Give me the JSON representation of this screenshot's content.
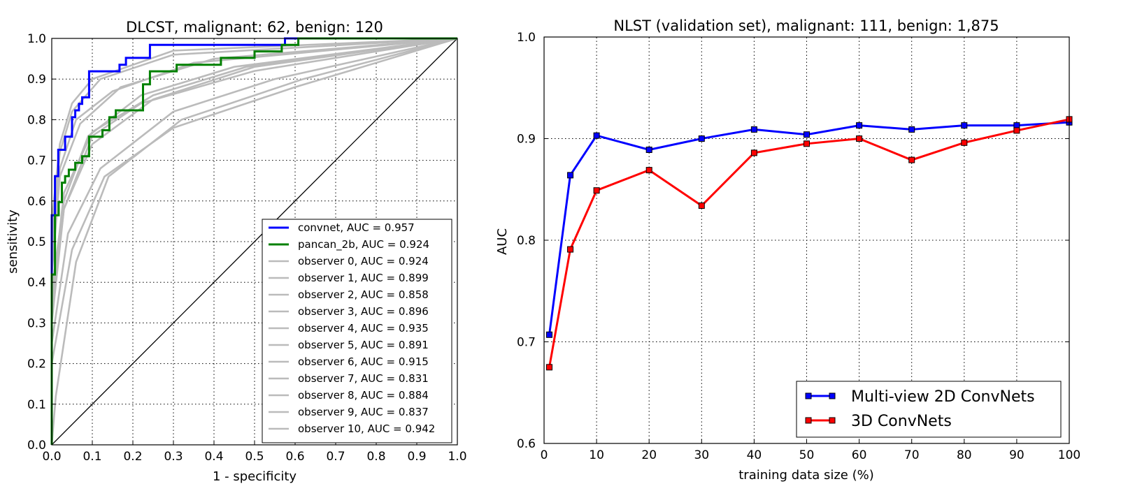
{
  "chart_data": [
    {
      "type": "line",
      "title": "DLCST, malignant: 62, benign: 120",
      "xlabel": "1 - specificity",
      "ylabel": "sensitivity",
      "xlim": [
        0.0,
        1.0
      ],
      "ylim": [
        0.0,
        1.0
      ],
      "x_ticks": [
        "0.0",
        "0.1",
        "0.2",
        "0.3",
        "0.4",
        "0.5",
        "0.6",
        "0.7",
        "0.8",
        "0.9",
        "1.0"
      ],
      "y_ticks": [
        "0.0",
        "0.1",
        "0.2",
        "0.3",
        "0.4",
        "0.5",
        "0.6",
        "0.7",
        "0.8",
        "0.9",
        "1.0"
      ],
      "grid": true,
      "legend_position": "bottom-right",
      "chance_line": {
        "x": [
          0,
          1
        ],
        "y": [
          0,
          1
        ],
        "color": "#000000"
      },
      "series": [
        {
          "name": "convnet, AUC = 0.957",
          "color": "#0000ff",
          "role": "primary",
          "x": [
            0.0,
            0.0,
            0.008,
            0.008,
            0.016,
            0.016,
            0.033,
            0.033,
            0.05,
            0.05,
            0.058,
            0.058,
            0.067,
            0.067,
            0.075,
            0.075,
            0.092,
            0.092,
            0.117,
            0.117,
            0.167,
            0.167,
            0.183,
            0.183,
            0.242,
            0.242,
            0.575,
            0.575,
            1.0
          ],
          "y": [
            0.0,
            0.565,
            0.565,
            0.661,
            0.661,
            0.726,
            0.726,
            0.758,
            0.758,
            0.806,
            0.806,
            0.823,
            0.823,
            0.839,
            0.839,
            0.855,
            0.855,
            0.919,
            0.919,
            0.919,
            0.919,
            0.935,
            0.935,
            0.952,
            0.952,
            0.984,
            0.984,
            1.0,
            1.0
          ]
        },
        {
          "name": "pancan_2b, AUC = 0.924",
          "color": "#008000",
          "role": "primary",
          "x": [
            0.0,
            0.0,
            0.008,
            0.008,
            0.017,
            0.017,
            0.025,
            0.025,
            0.033,
            0.033,
            0.042,
            0.042,
            0.058,
            0.058,
            0.075,
            0.075,
            0.092,
            0.092,
            0.125,
            0.125,
            0.142,
            0.142,
            0.158,
            0.158,
            0.225,
            0.225,
            0.242,
            0.242,
            0.308,
            0.308,
            0.417,
            0.417,
            0.5,
            0.5,
            0.567,
            0.567,
            0.608,
            0.608,
            1.0
          ],
          "y": [
            0.0,
            0.419,
            0.419,
            0.565,
            0.565,
            0.597,
            0.597,
            0.645,
            0.645,
            0.661,
            0.661,
            0.677,
            0.677,
            0.694,
            0.694,
            0.71,
            0.71,
            0.758,
            0.758,
            0.774,
            0.774,
            0.806,
            0.806,
            0.823,
            0.823,
            0.887,
            0.887,
            0.919,
            0.919,
            0.935,
            0.935,
            0.952,
            0.952,
            0.968,
            0.968,
            0.984,
            0.984,
            1.0,
            1.0
          ]
        },
        {
          "name": "observer 0, AUC = 0.924",
          "color": "#bbbbbb",
          "role": "observer",
          "x": [
            0,
            0.0,
            0.02,
            0.06,
            0.15,
            0.35,
            1.0
          ],
          "y": [
            0,
            0.45,
            0.68,
            0.8,
            0.87,
            0.94,
            1.0
          ]
        },
        {
          "name": "observer 1, AUC = 0.899",
          "color": "#bbbbbb",
          "role": "observer",
          "x": [
            0,
            0.0,
            0.03,
            0.09,
            0.22,
            0.45,
            1.0
          ],
          "y": [
            0,
            0.38,
            0.6,
            0.76,
            0.86,
            0.93,
            1.0
          ]
        },
        {
          "name": "observer 2, AUC = 0.858",
          "color": "#bbbbbb",
          "role": "observer",
          "x": [
            0,
            0.0,
            0.04,
            0.12,
            0.3,
            0.55,
            1.0
          ],
          "y": [
            0,
            0.25,
            0.52,
            0.68,
            0.82,
            0.9,
            1.0
          ]
        },
        {
          "name": "observer 3, AUC = 0.896",
          "color": "#bbbbbb",
          "role": "observer",
          "x": [
            0,
            0.0,
            0.03,
            0.1,
            0.25,
            0.48,
            1.0
          ],
          "y": [
            0,
            0.35,
            0.62,
            0.77,
            0.86,
            0.93,
            1.0
          ]
        },
        {
          "name": "observer 4, AUC = 0.935",
          "color": "#bbbbbb",
          "role": "observer",
          "x": [
            0,
            0.0,
            0.02,
            0.05,
            0.12,
            0.3,
            1.0
          ],
          "y": [
            0,
            0.5,
            0.72,
            0.82,
            0.9,
            0.96,
            1.0
          ]
        },
        {
          "name": "observer 5, AUC = 0.891",
          "color": "#bbbbbb",
          "role": "observer",
          "x": [
            0,
            0.0,
            0.03,
            0.1,
            0.22,
            0.5,
            1.0
          ],
          "y": [
            0,
            0.33,
            0.58,
            0.76,
            0.84,
            0.92,
            1.0
          ]
        },
        {
          "name": "observer 6, AUC = 0.915",
          "color": "#bbbbbb",
          "role": "observer",
          "x": [
            0,
            0.0,
            0.02,
            0.07,
            0.17,
            0.4,
            1.0
          ],
          "y": [
            0,
            0.42,
            0.66,
            0.79,
            0.88,
            0.95,
            1.0
          ]
        },
        {
          "name": "observer 7, AUC = 0.831",
          "color": "#bbbbbb",
          "role": "observer",
          "x": [
            0,
            0.0,
            0.05,
            0.13,
            0.3,
            0.6,
            1.0
          ],
          "y": [
            0,
            0.2,
            0.48,
            0.66,
            0.78,
            0.88,
            1.0
          ]
        },
        {
          "name": "observer 8, AUC = 0.884",
          "color": "#bbbbbb",
          "role": "observer",
          "x": [
            0,
            0.0,
            0.03,
            0.1,
            0.25,
            0.5,
            1.0
          ],
          "y": [
            0,
            0.3,
            0.58,
            0.74,
            0.85,
            0.93,
            1.0
          ]
        },
        {
          "name": "observer 9, AUC = 0.837",
          "color": "#bbbbbb",
          "role": "observer",
          "x": [
            0,
            0.01,
            0.06,
            0.14,
            0.32,
            0.62,
            1.0
          ],
          "y": [
            0,
            0.12,
            0.45,
            0.66,
            0.8,
            0.9,
            1.0
          ]
        },
        {
          "name": "observer 10, AUC = 0.942",
          "color": "#bbbbbb",
          "role": "observer",
          "x": [
            0,
            0.0,
            0.02,
            0.05,
            0.1,
            0.3,
            1.0
          ],
          "y": [
            0,
            0.55,
            0.74,
            0.84,
            0.9,
            0.97,
            1.0
          ]
        }
      ]
    },
    {
      "type": "line",
      "title": "NLST (validation set), malignant: 111, benign: 1,875",
      "xlabel": "training data size (%)",
      "ylabel": "AUC",
      "xlim": [
        0,
        100
      ],
      "ylim": [
        0.6,
        1.0
      ],
      "x_ticks": [
        "0",
        "10",
        "20",
        "30",
        "40",
        "50",
        "60",
        "70",
        "80",
        "90",
        "100"
      ],
      "y_ticks": [
        "0.6",
        "0.7",
        "0.8",
        "0.9",
        "1.0"
      ],
      "grid": true,
      "legend_position": "bottom-right",
      "series": [
        {
          "name": "Multi-view 2D ConvNets",
          "color": "#0000ff",
          "marker": "square",
          "x": [
            1,
            5,
            10,
            20,
            30,
            40,
            50,
            60,
            70,
            80,
            90,
            100
          ],
          "y": [
            0.707,
            0.864,
            0.903,
            0.889,
            0.9,
            0.909,
            0.904,
            0.913,
            0.909,
            0.913,
            0.913,
            0.916
          ]
        },
        {
          "name": "3D ConvNets",
          "color": "#ff0000",
          "marker": "square",
          "x": [
            1,
            5,
            10,
            20,
            30,
            40,
            50,
            60,
            70,
            80,
            90,
            100
          ],
          "y": [
            0.675,
            0.791,
            0.849,
            0.869,
            0.834,
            0.886,
            0.895,
            0.9,
            0.879,
            0.896,
            0.908,
            0.919
          ]
        }
      ]
    }
  ]
}
